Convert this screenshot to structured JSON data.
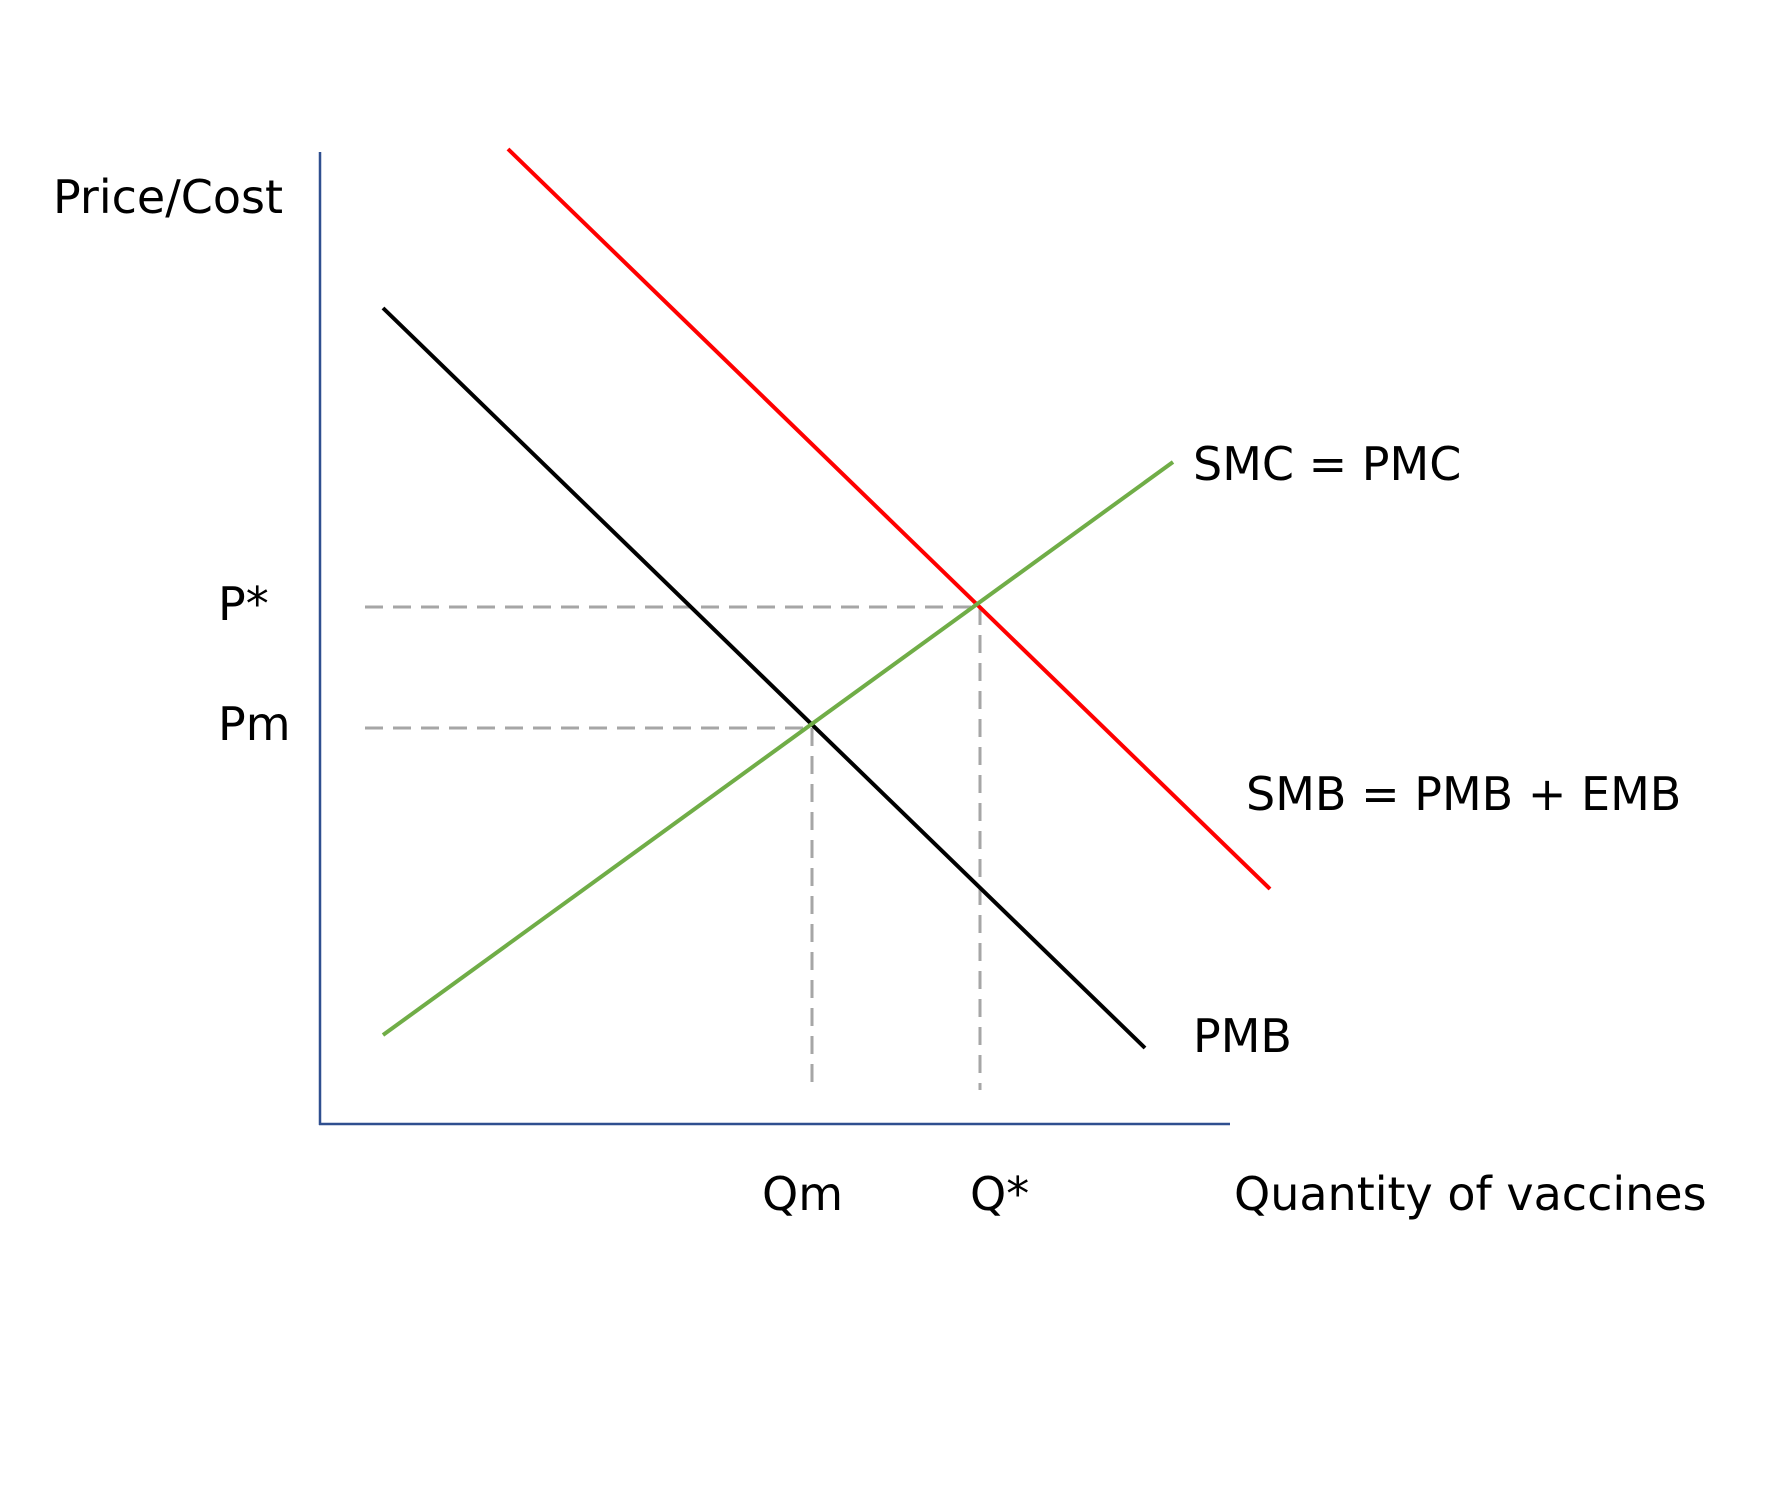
{
  "diagram": {
    "y_axis_label": "Price/Cost",
    "x_axis_label": "Quantity of vaccines",
    "price_labels": {
      "p_star": "P*",
      "p_m": "Pm"
    },
    "quantity_labels": {
      "q_m": "Qm",
      "q_star": "Q*"
    },
    "curves": {
      "supply": {
        "label": "SMC = PMC",
        "color": "#70ad47"
      },
      "social_benefit": {
        "label": "SMB = PMB + EMB",
        "color": "#ff0000"
      },
      "private_benefit": {
        "label": "PMB",
        "color": "#000000"
      }
    },
    "axis_color": "#2f4f8f",
    "guide_color": "#a6a6a6"
  }
}
